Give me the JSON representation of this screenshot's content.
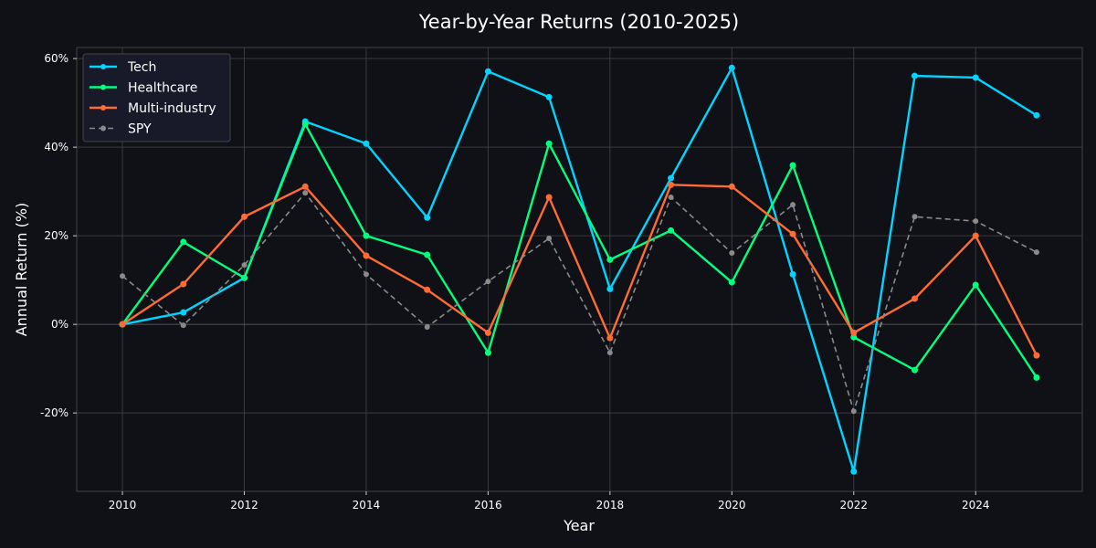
{
  "chart_data": {
    "type": "line",
    "title": "Year-by-Year Returns (2010-2025)",
    "xlabel": "Year",
    "ylabel": "Annual Return (%)",
    "x": [
      2010,
      2011,
      2012,
      2013,
      2014,
      2015,
      2016,
      2017,
      2018,
      2019,
      2020,
      2021,
      2022,
      2023,
      2024,
      2025
    ],
    "xlim": [
      2009.25,
      2025.75
    ],
    "ylim": [
      -37.7,
      62.5
    ],
    "xticks": [
      2010,
      2012,
      2014,
      2016,
      2018,
      2020,
      2022,
      2024
    ],
    "yticks": [
      -20,
      0,
      20,
      40,
      60
    ],
    "ytick_labels": [
      "-20%",
      "0%",
      "20%",
      "40%",
      "60%"
    ],
    "grid": true,
    "legend_placement": "top-left",
    "series": [
      {
        "name": "Tech",
        "color": "#00d4ff",
        "dashed": false,
        "values": [
          0,
          2.7,
          10.5,
          45.8,
          40.8,
          24.1,
          57.1,
          51.3,
          8.0,
          33.0,
          57.9,
          11.3,
          -33.2,
          56.1,
          55.7,
          47.2
        ]
      },
      {
        "name": "Healthcare",
        "color": "#00ff7f",
        "dashed": false,
        "values": [
          0,
          18.6,
          10.5,
          45.2,
          20.0,
          15.7,
          -6.4,
          40.8,
          14.6,
          21.2,
          9.5,
          35.9,
          -2.9,
          -10.3,
          8.9,
          -12.0
        ]
      },
      {
        "name": "Multi-industry",
        "color": "#ff6b35",
        "dashed": false,
        "values": [
          0,
          9.1,
          24.3,
          31.1,
          15.5,
          7.8,
          -1.9,
          28.7,
          -3.1,
          31.5,
          31.1,
          20.4,
          -1.9,
          5.8,
          20.0,
          -7.0
        ]
      },
      {
        "name": "SPY",
        "color": "#8a8a8a",
        "dashed": true,
        "values": [
          10.9,
          -0.2,
          13.4,
          29.7,
          11.3,
          -0.6,
          9.7,
          19.4,
          -6.4,
          28.7,
          16.1,
          27.0,
          -19.6,
          24.3,
          23.3,
          16.3
        ]
      }
    ]
  }
}
